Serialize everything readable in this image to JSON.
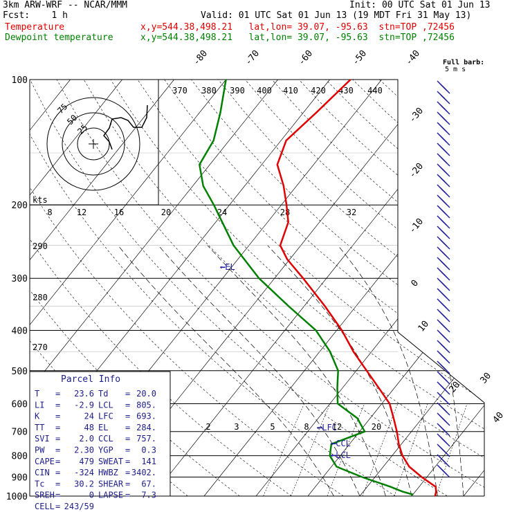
{
  "header": {
    "model": "3km ARW-WRF -- NCAR/MMM",
    "init": "Init: 00 UTC Sat 01 Jun 13",
    "fcst": "Fcst:    1 h",
    "valid": "Valid: 01 UTC Sat 01 Jun 13 (19 MDT Fri 31 May 13)",
    "temp_label": "Temperature",
    "temp_info": "x,y=544.38,498.21   lat,lon= 39.07, -95.63  stn=TOP ,72456",
    "dew_label": "Dewpoint temperature",
    "dew_info": "x,y=544.38,498.21   lat,lon= 39.07, -95.63  stn=TOP ,72456",
    "barb_note_1": "Full barb:",
    "barb_note_2": "5 m s",
    "colors": {
      "temperature": "#e00000",
      "dewpoint": "#008000",
      "axes": "#000000",
      "barbs": "#2020a0"
    }
  },
  "parcel_info": {
    "title": "Parcel Info",
    "rows": [
      [
        "T",
        "23.6",
        "Td",
        "20.0"
      ],
      [
        "LI",
        "-2.9",
        "LCL",
        "805."
      ],
      [
        "K",
        "24",
        "LFC",
        "693."
      ],
      [
        "TT",
        "48",
        "EL",
        "284."
      ],
      [
        "SVI",
        "2.0",
        "CCL",
        "757."
      ],
      [
        "PW",
        "2.30",
        "YGP",
        "0.3"
      ],
      [
        "CAPE",
        "479",
        "SWEAT",
        "141"
      ],
      [
        "CIN",
        "-324",
        "HWBZ",
        "3402."
      ],
      [
        "Tc",
        "30.2",
        "SHEAR",
        "67."
      ],
      [
        "SREH",
        "0",
        "LAPSE",
        "7.3"
      ],
      [
        "CELL",
        "243/59",
        "",
        ""
      ]
    ]
  },
  "chart_data": {
    "type": "skew-t",
    "pressure_ticks": [
      100,
      200,
      300,
      400,
      500,
      600,
      700,
      800,
      900,
      1000
    ],
    "isotherm_labels": [
      "-80",
      "-70",
      "-60",
      "-50",
      "-40",
      "-30",
      "-20",
      "-10",
      "0",
      "10",
      "20",
      "30",
      "40"
    ],
    "theta_labels": [
      "370",
      "380",
      "390",
      "400",
      "410",
      "420",
      "430",
      "440"
    ],
    "low_theta_labels": [
      "290",
      "280",
      "270"
    ],
    "mixing_ratio_labels": [
      "2",
      "3",
      "5",
      "8",
      "12",
      "20"
    ],
    "level_markers": [
      "EL",
      "LFC",
      "CCL",
      "LCL"
    ],
    "hodograph": {
      "units": "kts",
      "ring_labels": [
        "75",
        "50",
        "25"
      ],
      "x_tick_labels": [
        "8",
        "12",
        "16",
        "20",
        "24",
        "28",
        "32"
      ]
    },
    "temperature": [
      {
        "p": 1000,
        "t": 24.5
      },
      {
        "p": 975,
        "t": 24.0
      },
      {
        "p": 950,
        "t": 23.2
      },
      {
        "p": 900,
        "t": 19.0
      },
      {
        "p": 850,
        "t": 15.0
      },
      {
        "p": 800,
        "t": 12.0
      },
      {
        "p": 750,
        "t": 9.5
      },
      {
        "p": 700,
        "t": 7.2
      },
      {
        "p": 650,
        "t": 4.5
      },
      {
        "p": 600,
        "t": 1.5
      },
      {
        "p": 550,
        "t": -3.0
      },
      {
        "p": 500,
        "t": -8.0
      },
      {
        "p": 450,
        "t": -13.5
      },
      {
        "p": 400,
        "t": -19.0
      },
      {
        "p": 350,
        "t": -26.0
      },
      {
        "p": 300,
        "t": -34.5
      },
      {
        "p": 270,
        "t": -40.5
      },
      {
        "p": 250,
        "t": -44.0
      },
      {
        "p": 220,
        "t": -46.0
      },
      {
        "p": 200,
        "t": -49.0
      },
      {
        "p": 180,
        "t": -52.5
      },
      {
        "p": 160,
        "t": -57.0
      },
      {
        "p": 140,
        "t": -59.0
      },
      {
        "p": 120,
        "t": -57.5
      },
      {
        "p": 100,
        "t": -56.0
      }
    ],
    "dewpoint": [
      {
        "p": 1000,
        "t": 20.0
      },
      {
        "p": 990,
        "t": 19.8
      },
      {
        "p": 975,
        "t": 17.5
      },
      {
        "p": 950,
        "t": 14.5
      },
      {
        "p": 900,
        "t": 7.5
      },
      {
        "p": 850,
        "t": 1.0
      },
      {
        "p": 800,
        "t": -2.0
      },
      {
        "p": 750,
        "t": -3.5
      },
      {
        "p": 700,
        "t": 1.0
      },
      {
        "p": 650,
        "t": -2.5
      },
      {
        "p": 600,
        "t": -8.5
      },
      {
        "p": 550,
        "t": -11.0
      },
      {
        "p": 500,
        "t": -13.5
      },
      {
        "p": 450,
        "t": -18.0
      },
      {
        "p": 400,
        "t": -24.0
      },
      {
        "p": 350,
        "t": -33.0
      },
      {
        "p": 300,
        "t": -43.0
      },
      {
        "p": 250,
        "t": -53.0
      },
      {
        "p": 200,
        "t": -63.0
      },
      {
        "p": 180,
        "t": -68.0
      },
      {
        "p": 160,
        "t": -72.0
      },
      {
        "p": 140,
        "t": -73.0
      },
      {
        "p": 120,
        "t": -76.0
      },
      {
        "p": 100,
        "t": -80.0
      }
    ]
  }
}
